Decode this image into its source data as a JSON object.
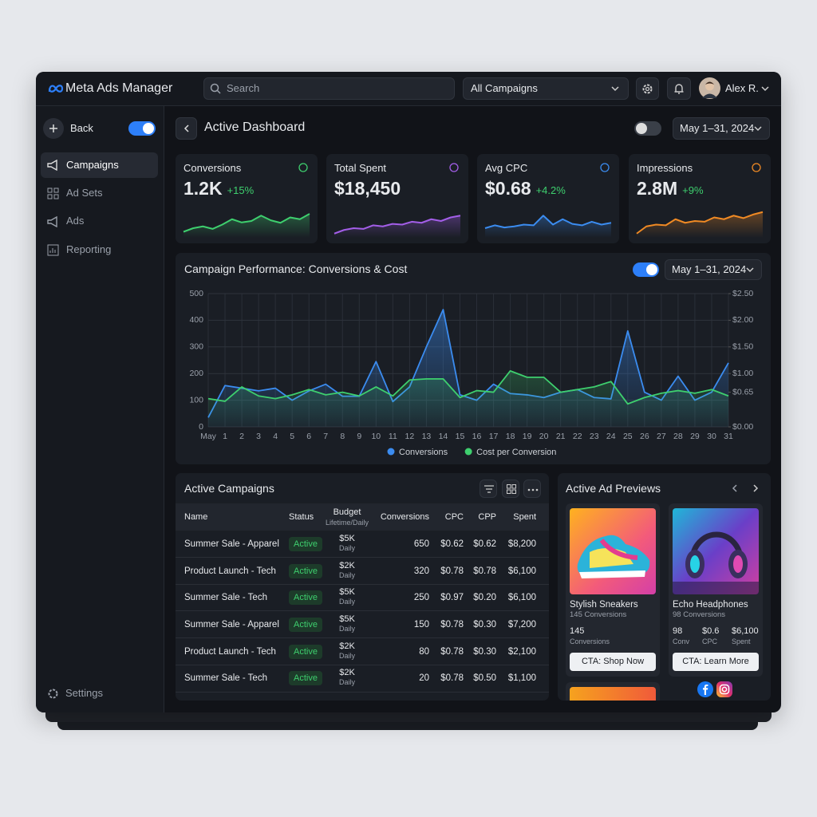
{
  "header": {
    "brand": "Meta Ads Manager",
    "search_placeholder": "Search",
    "campaign_filter": "All Campaigns",
    "user": "Alex R."
  },
  "sidebar": {
    "back": "Back",
    "nav": [
      "Campaigns",
      "Ad Sets",
      "Ads",
      "Reporting"
    ],
    "settings": "Settings"
  },
  "dashboard": {
    "title": "Active Dashboard",
    "date_range": "May 1–31, 2024"
  },
  "kpis": [
    {
      "label": "Conversions",
      "value": "1.2K",
      "change": "+15%",
      "color": "#3ecf6e",
      "spark": [
        10,
        20,
        25,
        18,
        30,
        45,
        36,
        40,
        55,
        42,
        35,
        50,
        45,
        60
      ]
    },
    {
      "label": "Total Spent",
      "value": "$18,450",
      "color": "#a35ee8",
      "spark": [
        5,
        15,
        20,
        18,
        28,
        25,
        32,
        30,
        38,
        35,
        45,
        40,
        50,
        55
      ]
    },
    {
      "label": "Avg CPC",
      "value": "$0.68",
      "change": "+4.2%",
      "color": "#3b8cf0",
      "spark": [
        20,
        28,
        22,
        25,
        30,
        28,
        55,
        30,
        45,
        32,
        28,
        38,
        30,
        35
      ]
    },
    {
      "label": "Impressions",
      "value": "2.8M",
      "change": "+9%",
      "color": "#f08a24",
      "spark": [
        5,
        25,
        30,
        28,
        45,
        35,
        40,
        38,
        50,
        45,
        55,
        48,
        58,
        65
      ]
    }
  ],
  "chart_data": {
    "type": "line",
    "title": "Campaign Performance: Conversions & Cost",
    "date_range": "May 1–31, 2024",
    "categories": [
      "May",
      "1",
      "2",
      "3",
      "4",
      "5",
      "6",
      "7",
      "8",
      "9",
      "10",
      "11",
      "12",
      "13",
      "14",
      "15",
      "16",
      "17",
      "18",
      "19",
      "20",
      "21",
      "22",
      "23",
      "24",
      "25",
      "26",
      "27",
      "28",
      "29",
      "30",
      "31"
    ],
    "series": [
      {
        "name": "Conversions",
        "color": "#3b8cf0",
        "values": [
          35,
          155,
          145,
          135,
          145,
          100,
          135,
          160,
          115,
          115,
          245,
          95,
          150,
          300,
          440,
          120,
          100,
          160,
          125,
          120,
          110,
          130,
          140,
          110,
          105,
          360,
          130,
          100,
          190,
          100,
          130,
          240
        ]
      },
      {
        "name": "Cost per Conversion",
        "color": "#3ecf6e",
        "axis": "y2",
        "values": [
          0.53,
          0.48,
          0.75,
          0.58,
          0.53,
          0.6,
          0.7,
          0.6,
          0.65,
          0.58,
          0.75,
          0.58,
          0.88,
          0.9,
          0.9,
          0.55,
          0.68,
          0.65,
          1.05,
          0.93,
          0.93,
          0.65,
          0.7,
          0.75,
          0.85,
          0.43,
          0.55,
          0.63,
          0.68,
          0.63,
          0.7,
          0.58
        ]
      }
    ],
    "ylim": [
      0,
      500
    ],
    "yticks": [
      0,
      100,
      200,
      300,
      400,
      500
    ],
    "y2lim": [
      0,
      2.5
    ],
    "y2ticks": [
      {
        "value": 0,
        "label": "$0.00"
      },
      {
        "value": 0.65,
        "label": "$0.65"
      },
      {
        "value": 1,
        "label": "$1.00"
      },
      {
        "value": 1.5,
        "label": "$1.50"
      },
      {
        "value": 2,
        "label": "$2.00"
      },
      {
        "value": 2.5,
        "label": "$2.50"
      }
    ],
    "grid": true,
    "legend": "bottom"
  },
  "table": {
    "title": "Active Campaigns",
    "columns": [
      "Name",
      "Status",
      "Budget",
      "Conversions",
      "CPC",
      "CPP",
      "Spent"
    ],
    "budget_subtitle": "Lifetime/Daily",
    "rows": [
      [
        "Summer Sale - Apparel",
        "Active",
        "$5K",
        "Daily",
        650,
        "$0.62",
        "$0.62",
        "$8,200"
      ],
      [
        "Product Launch - Tech",
        "Active",
        "$2K",
        "Daily",
        320,
        "$0.78",
        "$0.78",
        "$6,100"
      ],
      [
        "Summer Sale - Tech",
        "Active",
        "$5K",
        "Daily",
        250,
        "$0.97",
        "$0.20",
        "$6,100"
      ],
      [
        "Summer Sale - Apparel",
        "Active",
        "$5K",
        "Daily",
        150,
        "$0.78",
        "$0.30",
        "$7,200"
      ],
      [
        "Product Launch - Tech",
        "Active",
        "$2K",
        "Daily",
        80,
        "$0.78",
        "$0.30",
        "$2,100"
      ],
      [
        "Summer Sale - Tech",
        "Active",
        "$2K",
        "Daily",
        20,
        "$0.78",
        "$0.50",
        "$1,100"
      ]
    ]
  },
  "ad_previews": {
    "title": "Active Ad Previews",
    "cards": [
      {
        "name": "Stylish Sneakers",
        "subtitle": "145 Conversions",
        "stats": [
          {
            "value": "145",
            "label": "Conversions"
          }
        ],
        "cta": "CTA: Shop Now"
      },
      {
        "name": "Echo Headphones",
        "subtitle": "98 Conversions",
        "stats": [
          {
            "value": "98",
            "label": "Conv"
          },
          {
            "value": "$0.6",
            "label": "CPC"
          },
          {
            "value": "$6,100",
            "label": "Spent"
          }
        ],
        "cta": "CTA: Learn More"
      }
    ]
  }
}
